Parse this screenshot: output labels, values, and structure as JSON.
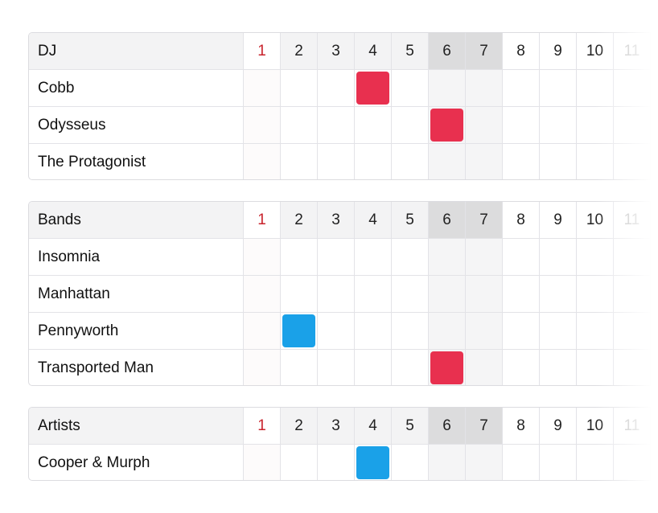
{
  "days": [
    1,
    2,
    3,
    4,
    5,
    6,
    7,
    8,
    9,
    10,
    11
  ],
  "today": 1,
  "weekend": [
    6,
    7
  ],
  "groups": [
    {
      "title": "DJ",
      "rows": [
        {
          "name": "Cobb",
          "marked_day": 4,
          "color": "#e8304f"
        },
        {
          "name": "Odysseus",
          "marked_day": 6,
          "color": "#e8304f"
        },
        {
          "name": "The Protagonist"
        }
      ]
    },
    {
      "title": "Bands",
      "rows": [
        {
          "name": "Insomnia"
        },
        {
          "name": "Manhattan"
        },
        {
          "name": "Pennyworth",
          "marked_day": 2,
          "color": "#1aa1e8"
        },
        {
          "name": "Transported Man",
          "marked_day": 6,
          "color": "#e8304f"
        }
      ]
    },
    {
      "title": "Artists",
      "rows": [
        {
          "name": "Cooper & Murph",
          "marked_day": 4,
          "color": "#1aa1e8"
        }
      ]
    }
  ]
}
